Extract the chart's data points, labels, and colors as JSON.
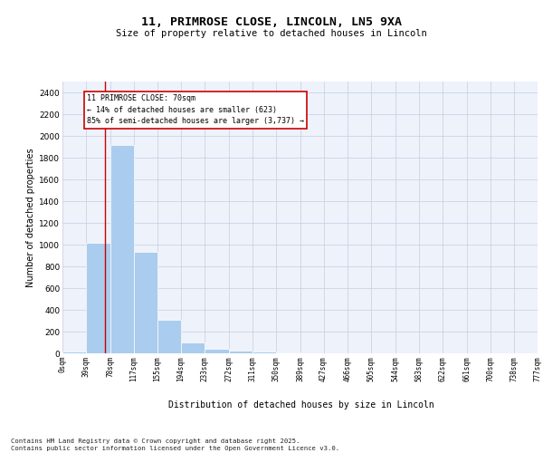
{
  "title_line1": "11, PRIMROSE CLOSE, LINCOLN, LN5 9XA",
  "title_line2": "Size of property relative to detached houses in Lincoln",
  "xlabel": "Distribution of detached houses by size in Lincoln",
  "ylabel": "Number of detached properties",
  "bar_color": "#aaccee",
  "grid_color": "#c8cce0",
  "background_color": "#eef2fb",
  "vline_color": "#cc0000",
  "vline_x": 70,
  "annotation_text": "11 PRIMROSE CLOSE: 70sqm\n← 14% of detached houses are smaller (623)\n85% of semi-detached houses are larger (3,737) →",
  "annotation_box_edgecolor": "#cc0000",
  "bin_edges": [
    0,
    39,
    78,
    117,
    155,
    194,
    233,
    272,
    311,
    350,
    389,
    427,
    466,
    505,
    544,
    583,
    622,
    661,
    700,
    738,
    777
  ],
  "bin_labels": [
    "0sqm",
    "39sqm",
    "78sqm",
    "117sqm",
    "155sqm",
    "194sqm",
    "233sqm",
    "272sqm",
    "311sqm",
    "350sqm",
    "389sqm",
    "427sqm",
    "466sqm",
    "505sqm",
    "544sqm",
    "583sqm",
    "622sqm",
    "661sqm",
    "700sqm",
    "738sqm",
    "777sqm"
  ],
  "bar_heights": [
    15,
    1020,
    1920,
    930,
    310,
    100,
    45,
    25,
    15,
    10,
    0,
    0,
    0,
    0,
    0,
    0,
    0,
    0,
    0,
    0
  ],
  "ylim": [
    0,
    2500
  ],
  "yticks": [
    0,
    200,
    400,
    600,
    800,
    1000,
    1200,
    1400,
    1600,
    1800,
    2000,
    2200,
    2400
  ],
  "footer_line1": "Contains HM Land Registry data © Crown copyright and database right 2025.",
  "footer_line2": "Contains public sector information licensed under the Open Government Licence v3.0."
}
